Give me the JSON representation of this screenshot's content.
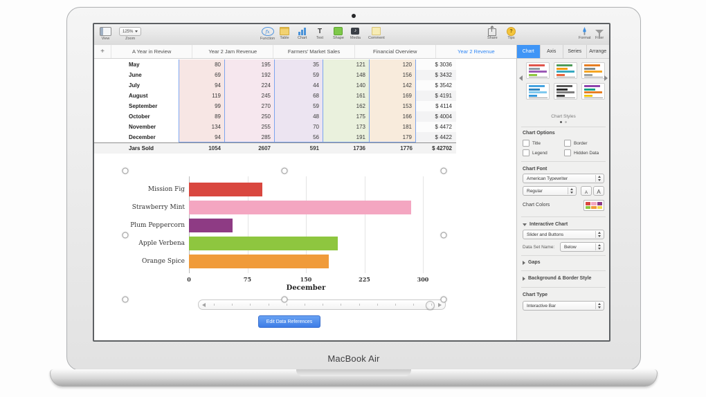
{
  "device": {
    "label": "MacBook Air"
  },
  "add_tab_label": "+",
  "toolbar": {
    "view": "View",
    "zoom": "Zoom",
    "zoom_value": "125%",
    "insert_tools": [
      "Function",
      "Table",
      "Chart",
      "Text",
      "Shape",
      "Media",
      "Comment"
    ],
    "share": "Share",
    "tips": "Tips",
    "format": "Format",
    "filter": "Filter"
  },
  "icons": {
    "function_glyph": "fx",
    "text_glyph": "T",
    "media_glyph": "♪",
    "tips_glyph": "?"
  },
  "sheet_tabs": [
    "A Year in Review",
    "Year 2 Jam Revenue",
    "Farmers’ Market Sales",
    "Financial Overview",
    "Year 2 Revenue"
  ],
  "active_tab": "Year 2 Revenue",
  "table": {
    "column_tints": [
      "#f7e6e4",
      "#f6e7ee",
      "#ece4f1",
      "#eaf1dd",
      "#f8ebdc"
    ],
    "rows": [
      {
        "month": "May",
        "values": [
          "80",
          "195",
          "35",
          "121",
          "120"
        ],
        "revenue": "$ 3036"
      },
      {
        "month": "June",
        "values": [
          "69",
          "192",
          "59",
          "148",
          "156"
        ],
        "revenue": "$ 3432"
      },
      {
        "month": "July",
        "values": [
          "94",
          "224",
          "44",
          "140",
          "142"
        ],
        "revenue": "$ 3542"
      },
      {
        "month": "August",
        "values": [
          "119",
          "245",
          "68",
          "161",
          "169"
        ],
        "revenue": "$ 4191"
      },
      {
        "month": "September",
        "values": [
          "99",
          "270",
          "59",
          "162",
          "153"
        ],
        "revenue": "$ 4114"
      },
      {
        "month": "October",
        "values": [
          "89",
          "250",
          "48",
          "175",
          "166"
        ],
        "revenue": "$ 4004"
      },
      {
        "month": "November",
        "values": [
          "134",
          "255",
          "70",
          "173",
          "181"
        ],
        "revenue": "$ 4472"
      },
      {
        "month": "December",
        "values": [
          "94",
          "285",
          "56",
          "191",
          "179"
        ],
        "revenue": "$ 4422"
      }
    ],
    "totals": {
      "label": "Jars Sold",
      "values": [
        "1054",
        "2607",
        "591",
        "1736",
        "1776"
      ],
      "revenue": "$ 42702"
    }
  },
  "chart_data": {
    "type": "bar",
    "orientation": "horizontal",
    "categories": [
      "Mission Fig",
      "Strawberry Mint",
      "Plum Peppercorn",
      "Apple Verbena",
      "Orange Spice"
    ],
    "values": [
      94,
      285,
      56,
      191,
      179
    ],
    "bar_colors": [
      "#d9473f",
      "#f4a6c1",
      "#8e3b84",
      "#8ec63f",
      "#f09b3a"
    ],
    "xlabel": "December",
    "xticks": [
      "0",
      "75",
      "150",
      "225",
      "300"
    ],
    "xlim": [
      0,
      300
    ],
    "grid": true,
    "legend": false
  },
  "edit_button_label": "Edit Data References",
  "sidebar": {
    "tabs": [
      "Chart",
      "Axis",
      "Series",
      "Arrange"
    ],
    "active_tab": "Chart",
    "styles_caption": "Chart Styles",
    "style_pages": 2,
    "style_thumbs": [
      [
        "#e0544a",
        "#8f9aa6",
        "#9b59b6",
        "#8dc63f"
      ],
      [
        "#4f9b57",
        "#f39c12",
        "#35a8c0",
        "#e8633a"
      ],
      [
        "#e67e22",
        "#7f8c8d",
        "#f5a623",
        "#9aa0a3"
      ],
      [
        "#45a3e0",
        "#2e86c1",
        "#7fc9ee",
        "#3498db"
      ],
      [
        "#5a5a5a",
        "#2c2c2c",
        "#7d7d7d",
        "#3a3a3a"
      ],
      [
        "#8e44ad",
        "#16a085",
        "#e67e22",
        "#f1c40f"
      ]
    ],
    "options_header": "Chart Options",
    "checkboxes": [
      "Title",
      "Border",
      "Legend",
      "Hidden Data"
    ],
    "font_header": "Chart Font",
    "font_name": "American Typewriter",
    "font_style": "Regular",
    "font_small": "A",
    "font_large": "A",
    "colors_label": "Chart Colors",
    "color_swatch": [
      "#d9473f",
      "#f4a6c1",
      "#8e3b84",
      "#8ec63f",
      "#f09b3a",
      "#f3d94e"
    ],
    "interactive_header": "Interactive Chart",
    "interactive_control": "Slider and Buttons",
    "data_set_label": "Data Set Name:",
    "data_set_value": "Below",
    "gaps_header": "Gaps",
    "background_header": "Background & Border Style",
    "chart_type_header": "Chart Type",
    "chart_type_value": "Interactive Bar"
  }
}
